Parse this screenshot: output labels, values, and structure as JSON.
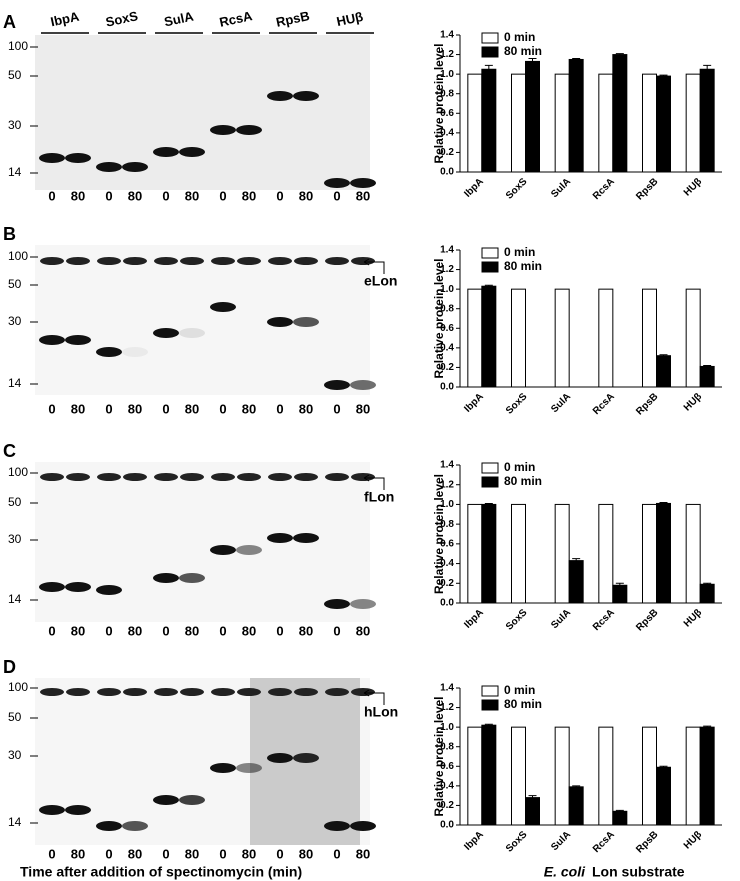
{
  "panels": [
    {
      "label": "A",
      "proteins": [
        "IbpA",
        "SoxS",
        "SulA",
        "RcsA",
        "RpsB",
        "HUβ"
      ],
      "markers": [
        100,
        50,
        30,
        14
      ],
      "lanes": [
        0,
        80,
        0,
        80,
        0,
        80,
        0,
        80,
        0,
        80,
        0,
        80
      ]
    },
    {
      "label": "B",
      "markers": [
        100,
        50,
        30,
        14
      ],
      "lanes": [
        0,
        80,
        0,
        80,
        0,
        80,
        0,
        80,
        0,
        80,
        0,
        80
      ],
      "lon": "eLon"
    },
    {
      "label": "C",
      "markers": [
        100,
        50,
        30,
        14
      ],
      "lanes": [
        0,
        80,
        0,
        80,
        0,
        80,
        0,
        80,
        0,
        80,
        0,
        80
      ],
      "lon": "fLon"
    },
    {
      "label": "D",
      "markers": [
        100,
        50,
        30,
        14
      ],
      "lanes": [
        0,
        80,
        0,
        80,
        0,
        80,
        0,
        80,
        0,
        80,
        0,
        80
      ],
      "lon": "hLon"
    }
  ],
  "footer": {
    "time_label": "Time after addition of spectinomycin (min)",
    "organism": "E. coli",
    "substrate": "Lon substrate"
  },
  "chart_data": [
    {
      "type": "bar",
      "ylabel": "Relative protein level",
      "categories": [
        "IbpA",
        "SoxS",
        "SulA",
        "RcsA",
        "RpsB",
        "HUβ"
      ],
      "ylim": [
        0,
        1.4
      ],
      "yticks": [
        {
          "value": 0,
          "label": "0.0"
        },
        0.2,
        0.4,
        0.6,
        0.8,
        {
          "value": 1,
          "label": "1.0"
        },
        1.2,
        1.4
      ],
      "legend": "upper left",
      "series": [
        {
          "name": "0 min",
          "color": "#ffffff",
          "values": [
            1,
            1,
            1,
            1,
            1,
            1
          ]
        },
        {
          "name": "80 min",
          "color": "#000000",
          "values": [
            1.05,
            1.13,
            1.15,
            1.2,
            0.98,
            1.05
          ],
          "errors": [
            0.04,
            0.03,
            0.01,
            0.01,
            0.01,
            0.04
          ]
        }
      ]
    },
    {
      "type": "bar",
      "ylabel": "Relative protein level",
      "categories": [
        "IbpA",
        "SoxS",
        "SulA",
        "RcsA",
        "RpsB",
        "HUβ"
      ],
      "ylim": [
        0,
        1.4
      ],
      "yticks": [
        {
          "value": 0,
          "label": "0.0"
        },
        0.2,
        0.4,
        0.6,
        0.8,
        {
          "value": 1,
          "label": "1.0"
        },
        1.2,
        1.4
      ],
      "legend": "upper left",
      "series": [
        {
          "name": "0 min",
          "color": "#ffffff",
          "values": [
            1,
            1,
            1,
            1,
            1,
            1
          ]
        },
        {
          "name": "80 min",
          "color": "#000000",
          "values": [
            1.03,
            0,
            0,
            0,
            0.32,
            0.21
          ],
          "errors": [
            0.01,
            0,
            0,
            0,
            0.01,
            0.01
          ]
        }
      ]
    },
    {
      "type": "bar",
      "ylabel": "Relative protein level",
      "categories": [
        "IbpA",
        "SoxS",
        "SulA",
        "RcsA",
        "RpsB",
        "HUβ"
      ],
      "ylim": [
        0,
        1.4
      ],
      "yticks": [
        {
          "value": 0,
          "label": "0.0"
        },
        0.2,
        0.4,
        0.6,
        0.8,
        {
          "value": 1,
          "label": "1.0"
        },
        1.2,
        1.4
      ],
      "legend": "upper left",
      "series": [
        {
          "name": "0 min",
          "color": "#ffffff",
          "values": [
            1,
            1,
            1,
            1,
            1,
            1
          ]
        },
        {
          "name": "80 min",
          "color": "#000000",
          "values": [
            1.0,
            0,
            0.43,
            0.18,
            1.01,
            0.19
          ],
          "errors": [
            0.01,
            0,
            0.02,
            0.02,
            0.01,
            0.01
          ]
        }
      ]
    },
    {
      "type": "bar",
      "ylabel": "Relative protein level",
      "categories": [
        "IbpA",
        "SoxS",
        "SulA",
        "RcsA",
        "RpsB",
        "HUβ"
      ],
      "ylim": [
        0,
        1.4
      ],
      "yticks": [
        {
          "value": 0,
          "label": "0.0"
        },
        0.2,
        0.4,
        0.6,
        0.8,
        {
          "value": 1,
          "label": "1.0"
        },
        1.2,
        1.4
      ],
      "legend": "upper left",
      "series": [
        {
          "name": "0 min",
          "color": "#ffffff",
          "values": [
            1,
            1,
            1,
            1,
            1,
            1
          ]
        },
        {
          "name": "80 min",
          "color": "#000000",
          "values": [
            1.02,
            0.28,
            0.39,
            0.14,
            0.59,
            1.0
          ],
          "errors": [
            0.01,
            0.02,
            0.01,
            0.01,
            0.01,
            0.01
          ]
        }
      ]
    }
  ]
}
